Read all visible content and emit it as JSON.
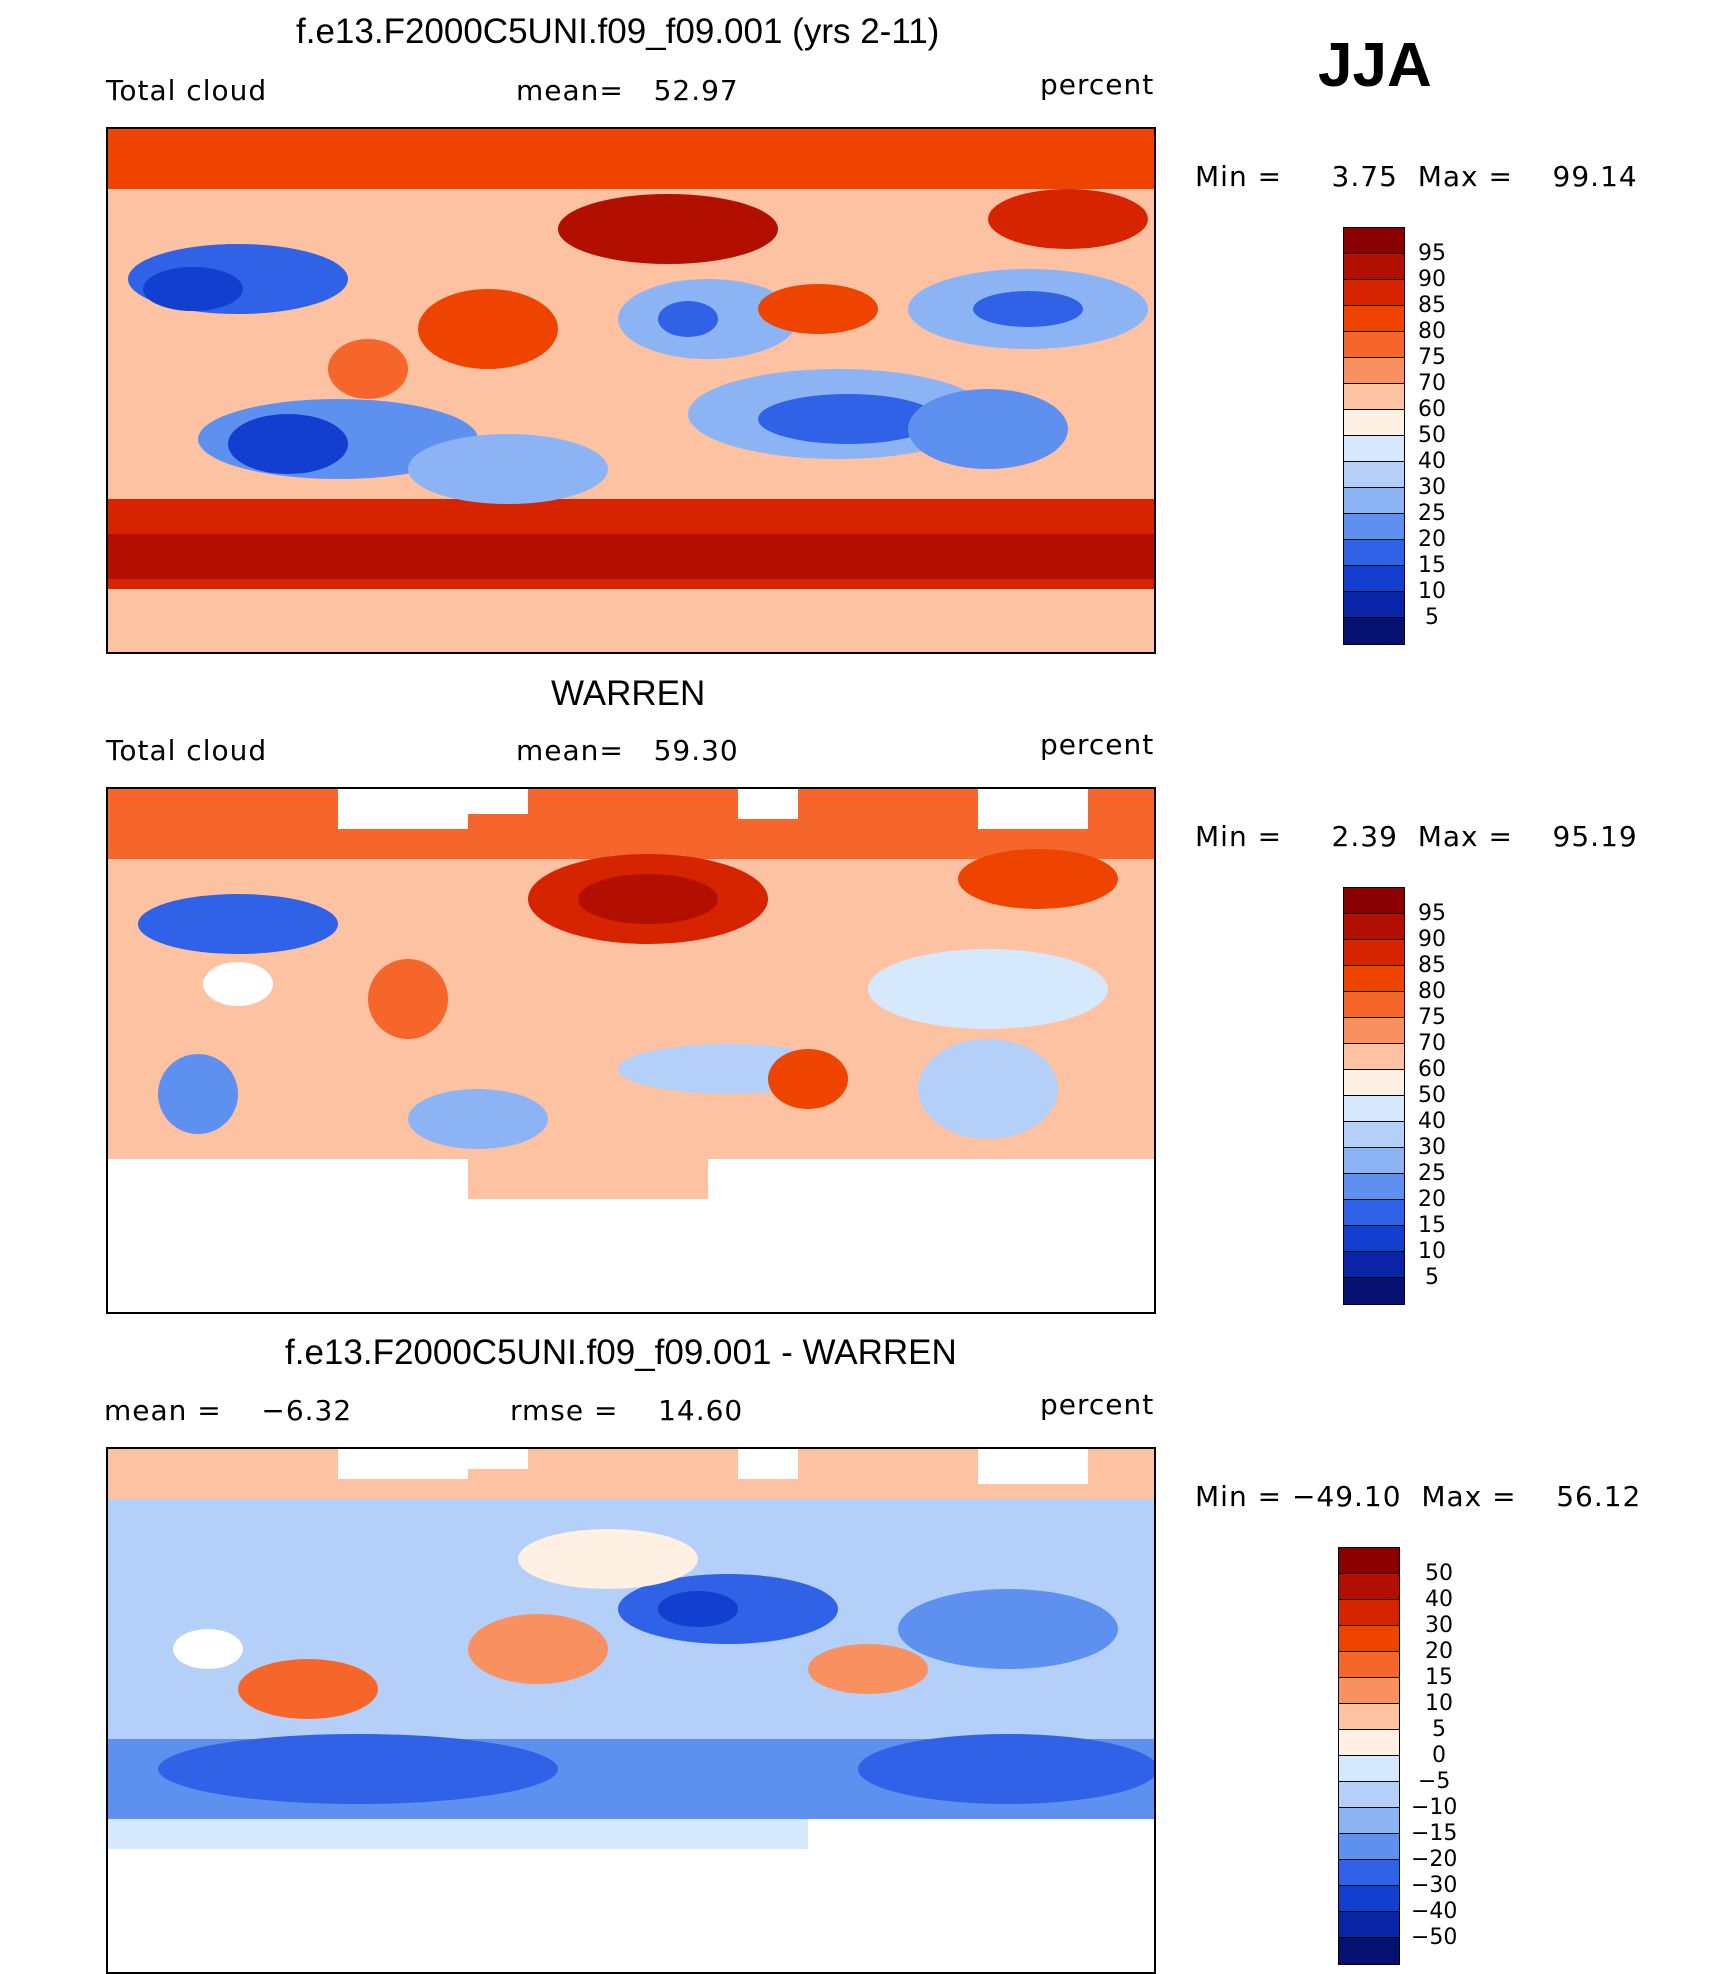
{
  "season": "JJA",
  "panels": [
    {
      "title": "f.e13.F2000C5UNI.f09_f09.001 (yrs 2-11)",
      "variable": "Total cloud",
      "stat1": "mean=   52.97",
      "stat2": "",
      "units": "percent",
      "minmax": "Min =     3.75  Max =    99.14",
      "cbar_ticks": [
        "95",
        "90",
        "85",
        "80",
        "75",
        "70",
        "60",
        "50",
        "40",
        "30",
        "25",
        "20",
        "15",
        "10",
        "5"
      ],
      "cbar_colors": [
        "#8b0000",
        "#b30f00",
        "#d62400",
        "#ef4300",
        "#f6662a",
        "#f99060",
        "#fcc2a2",
        "#fef0e2",
        "#d6e8fb",
        "#b4d0f8",
        "#8cb4f5",
        "#5e90f0",
        "#2f62e6",
        "#123fd0",
        "#0a24a8",
        "#061070"
      ]
    },
    {
      "title": "WARREN",
      "variable": "Total cloud",
      "stat1": "mean=   59.30",
      "stat2": "",
      "units": "percent",
      "minmax": "Min =     2.39  Max =    95.19",
      "cbar_ticks": [
        "95",
        "90",
        "85",
        "80",
        "75",
        "70",
        "60",
        "50",
        "40",
        "30",
        "25",
        "20",
        "15",
        "10",
        "5"
      ],
      "cbar_colors": [
        "#8b0000",
        "#b30f00",
        "#d62400",
        "#ef4300",
        "#f6662a",
        "#f99060",
        "#fcc2a2",
        "#fef0e2",
        "#d6e8fb",
        "#b4d0f8",
        "#8cb4f5",
        "#5e90f0",
        "#2f62e6",
        "#123fd0",
        "#0a24a8",
        "#061070"
      ]
    },
    {
      "title": "f.e13.F2000C5UNI.f09_f09.001 - WARREN",
      "variable": "",
      "stat1": "mean =    −6.32",
      "stat2": "rmse =    14.60",
      "units": "percent",
      "minmax": "Min = −49.10  Max =    56.12",
      "cbar_ticks": [
        "50",
        "40",
        "30",
        "20",
        "15",
        "10",
        "5",
        "0",
        "−5",
        "−10",
        "−15",
        "−20",
        "−30",
        "−40",
        "−50"
      ],
      "cbar_colors": [
        "#8b0000",
        "#b30f00",
        "#d62400",
        "#ef4300",
        "#f6662a",
        "#f99060",
        "#fcc2a2",
        "#fef0e2",
        "#d6e8fb",
        "#b4d0f8",
        "#8cb4f5",
        "#5e90f0",
        "#2f62e6",
        "#123fd0",
        "#0a24a8",
        "#061070"
      ]
    }
  ]
}
